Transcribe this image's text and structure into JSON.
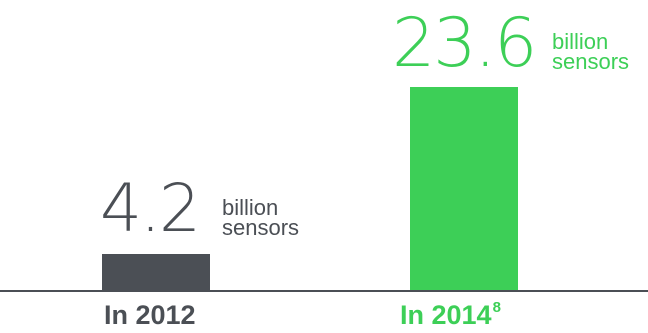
{
  "colors": {
    "bar_2012": "#4b4f55",
    "bar_2014": "#3dcf57",
    "text_2012": "#4b4f55",
    "text_2014": "#3dcf57",
    "axis": "#4b4f55"
  },
  "chart_data": {
    "type": "bar",
    "categories": [
      "In 2012",
      "In 2014"
    ],
    "values": [
      4.2,
      23.6
    ],
    "value_labels": [
      "4.2",
      "23.6"
    ],
    "unit_line1": "billion",
    "unit_line2": "sensors",
    "footnote_2014": "8",
    "title": "",
    "xlabel": "",
    "ylabel": ""
  }
}
